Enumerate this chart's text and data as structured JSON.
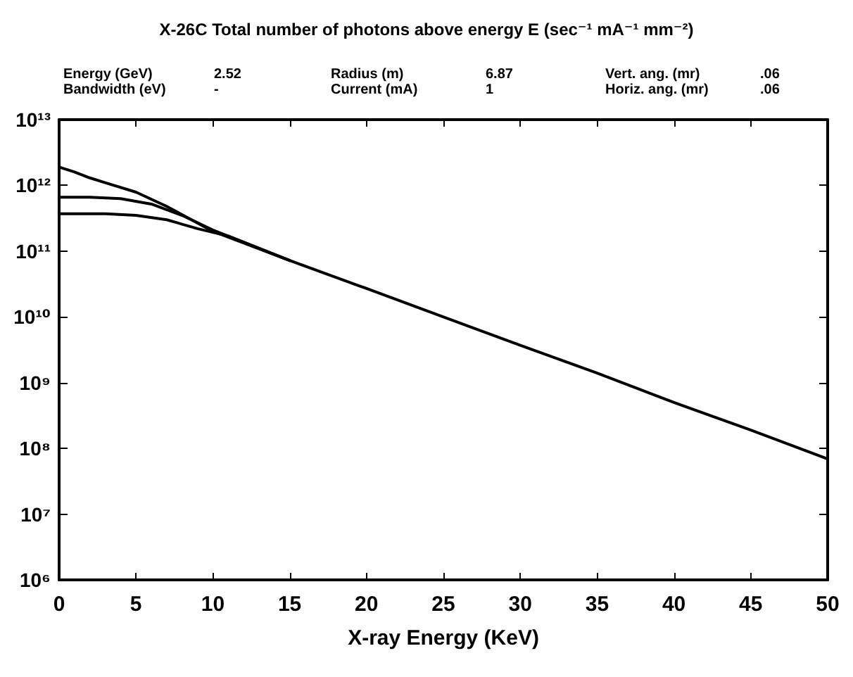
{
  "chart_data": {
    "type": "line",
    "title": "X-26C Total number of photons above energy E (sec⁻¹ mA⁻¹ mm⁻²)",
    "xlabel": "X-ray Energy (KeV)",
    "annotations": [
      "Energy (GeV)",
      "2.52",
      "Radius (m)",
      "6.87",
      "Vert. ang. (mr)",
      ".06",
      "Bandwidth (eV)",
      "-",
      "Current (mA)",
      "1",
      "Horiz. ang. (mr)",
      ".06"
    ],
    "series": [
      {
        "color": "#000000",
        "x": [
          0,
          1,
          2,
          3,
          5,
          7,
          10,
          15,
          20,
          25,
          30,
          35,
          40,
          45,
          50
        ],
        "values": [
          1900000000000.0,
          1600000000000.0,
          1300000000000.0,
          1100000000000.0,
          790000000000.0,
          480000000000.0,
          200000000000.0,
          72000000000.0,
          27000000000.0,
          10000000000.0,
          3700000000.0,
          1400000000.0,
          500000000.0,
          190000000.0,
          69000000.0
        ]
      },
      {
        "color": "#000000",
        "x": [
          0,
          2,
          4,
          6,
          8,
          10,
          15
        ],
        "values": [
          660000000000.0,
          660000000000.0,
          630000000000.0,
          520000000000.0,
          350000000000.0,
          210000000000.0,
          72000000000.0
        ]
      },
      {
        "color": "#000000",
        "x": [
          0,
          3,
          5,
          7,
          9,
          11,
          15
        ],
        "values": [
          370000000000.0,
          370000000000.0,
          350000000000.0,
          300000000000.0,
          220000000000.0,
          170000000000.0,
          72000000000.0
        ]
      }
    ],
    "xlim": [
      0,
      50
    ],
    "xticks": [
      0,
      5,
      10,
      15,
      20,
      25,
      30,
      35,
      40,
      45,
      50
    ],
    "ylim": [
      1000000.0,
      10000000000000.0
    ],
    "log": true,
    "yticks": [
      {
        "value": 1000000.0,
        "label": "10⁶"
      },
      {
        "value": 10000000.0,
        "label": "10⁷"
      },
      {
        "value": 100000000.0,
        "label": "10⁸"
      },
      {
        "value": 1000000000.0,
        "label": "10⁹"
      },
      {
        "value": 10000000000.0,
        "label": "10¹⁰"
      },
      {
        "value": 100000000000.0,
        "label": "10¹¹"
      },
      {
        "value": 1000000000000.0,
        "label": "10¹²"
      },
      {
        "value": 10000000000000.0,
        "label": "10¹³"
      }
    ],
    "grid": false,
    "marker": "none",
    "line_style": "solid"
  }
}
